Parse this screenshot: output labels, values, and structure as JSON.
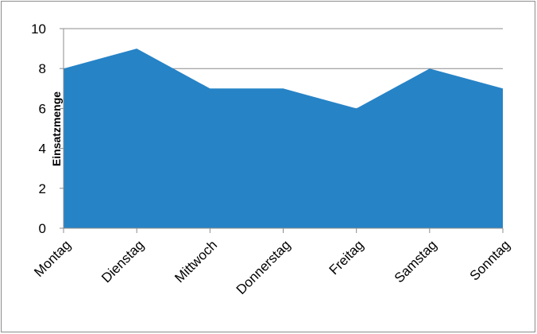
{
  "chart_data": {
    "type": "area",
    "title": "",
    "xlabel": "",
    "ylabel": "Einsatzmenge",
    "categories": [
      "Montag",
      "Dienstag",
      "Mittwoch",
      "Donnerstag",
      "Freitag",
      "Samstag",
      "Sonntag"
    ],
    "series": [
      {
        "values": [
          8,
          9,
          7,
          7,
          6,
          8,
          7
        ]
      }
    ],
    "ylim": [
      0,
      10
    ],
    "yticks": [
      "0",
      "2",
      "4",
      "6",
      "8",
      "10"
    ],
    "grid": true,
    "legend": "none",
    "colors": {
      "fill": "#2683c6",
      "grid": "#8c8c8c",
      "axis": "#8c8c8c",
      "border": "#8c8c8c"
    }
  }
}
